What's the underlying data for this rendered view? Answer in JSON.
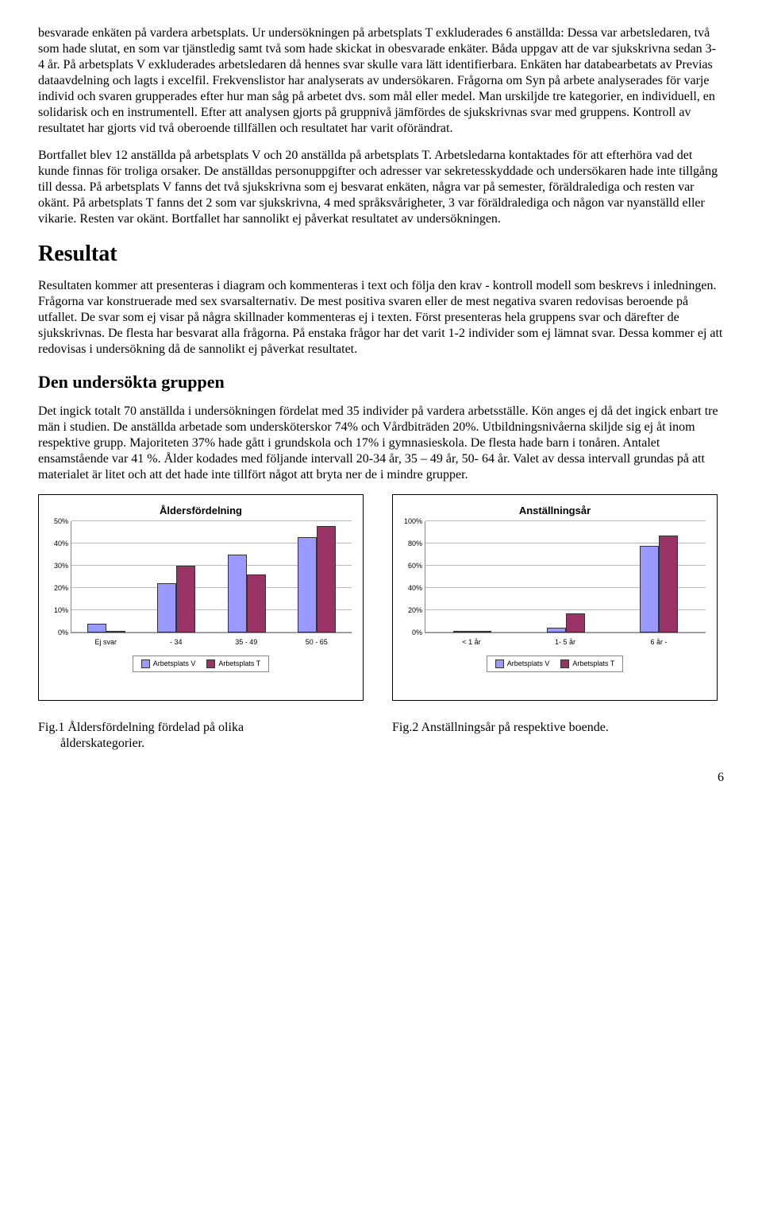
{
  "paragraphs": {
    "p1": "besvarade enkäten på vardera arbetsplats. Ur undersökningen på arbetsplats T exkluderades 6 anställda: Dessa var arbetsledaren, två som hade slutat, en som var tjänstledig samt två som hade skickat in obesvarade enkäter. Båda uppgav att de var sjukskrivna sedan 3- 4 år. På arbetsplats V exkluderades arbetsledaren då hennes svar skulle vara lätt identifierbara. Enkäten har databearbetats av Previas dataavdelning och lagts i excelfil. Frekvenslistor har analyserats av undersökaren. Frågorna om Syn på arbete analyserades för varje individ och svaren grupperades efter hur man såg på arbetet dvs. som mål eller medel. Man urskiljde tre kategorier, en individuell, en solidarisk och en instrumentell. Efter att analysen gjorts på gruppnivå jämfördes de sjukskrivnas svar med gruppens. Kontroll av resultatet har gjorts vid två oberoende tillfällen och resultatet har varit oförändrat.",
    "p2": "Bortfallet blev 12 anställda på arbetsplats V och 20 anställda på arbetsplats T. Arbetsledarna kontaktades för att efterhöra vad det kunde finnas för troliga orsaker. De anställdas personuppgifter och adresser var sekretesskyddade och undersökaren hade inte tillgång till dessa. På arbetsplats V fanns det två sjukskrivna som ej besvarat enkäten, några var på semester, föräldralediga och resten var okänt. På arbetsplats T fanns det 2 som var sjukskrivna, 4 med språksvårigheter, 3 var föräldralediga och någon var nyanställd eller vikarie. Resten var okänt. Bortfallet har sannolikt ej påverkat resultatet av undersökningen.",
    "p3": "Resultaten kommer att presenteras i diagram och kommenteras i text och följa den krav - kontroll modell som beskrevs i inledningen. Frågorna var konstruerade med sex svarsalternativ. De mest positiva svaren eller de mest negativa svaren  redovisas beroende på utfallet. De svar som ej visar på några skillnader kommenteras ej i texten. Först presenteras hela gruppens svar och därefter de sjukskrivnas. De flesta har besvarat alla frågorna. På enstaka frågor har det varit 1-2 individer som ej lämnat svar. Dessa kommer ej att redovisas i undersökning då de sannolikt ej påverkat resultatet.",
    "p4": "Det ingick totalt 70 anställda i undersökningen fördelat med 35 individer på vardera arbetsställe. Kön anges ej då det ingick enbart tre män i studien. De anställda arbetade som undersköterskor 74% och Vårdbiträden 20%. Utbildningsnivåerna skiljde sig ej åt inom respektive grupp. Majoriteten 37% hade gått i grundskola och 17% i gymnasieskola. De flesta hade barn i tonåren. Antalet ensamstående var 41 %. Ålder kodades med följande intervall 20-34 år, 35 – 49 år, 50- 64 år. Valet av dessa intervall grundas på att materialet är litet och att det hade inte tillfört något att bryta ner de i mindre grupper."
  },
  "headings": {
    "h1": "Resultat",
    "h2": "Den undersökta gruppen"
  },
  "charts": {
    "colors": {
      "seriesV": "#9999ff",
      "seriesT": "#993366",
      "grid": "#bbbbbb",
      "axis": "#888888"
    },
    "legend": {
      "v": "Arbetsplats V",
      "t": "Arbetsplats T"
    },
    "chart1": {
      "title": "Åldersfördelning",
      "ymax": 50,
      "ytick_step": 10,
      "ytick_suffix": "%",
      "categories": [
        "Ej svar",
        "- 34",
        "35 - 49",
        "50 - 65"
      ],
      "seriesV": [
        4,
        22,
        35,
        43
      ],
      "seriesT": [
        0,
        30,
        26,
        48
      ]
    },
    "chart2": {
      "title": "Anställningsår",
      "ymax": 100,
      "ytick_step": 20,
      "ytick_suffix": "%",
      "categories": [
        "< 1 år",
        "1- 5 år",
        "6 år -"
      ],
      "seriesV": [
        0,
        4,
        78
      ],
      "seriesT": [
        0,
        17,
        87
      ]
    }
  },
  "captions": {
    "c1a": "Fig.1 Åldersfördelning fördelad på olika",
    "c1b": "       ålderskategorier.",
    "c2": "Fig.2 Anställningsår på respektive boende."
  },
  "pagenum": "6"
}
